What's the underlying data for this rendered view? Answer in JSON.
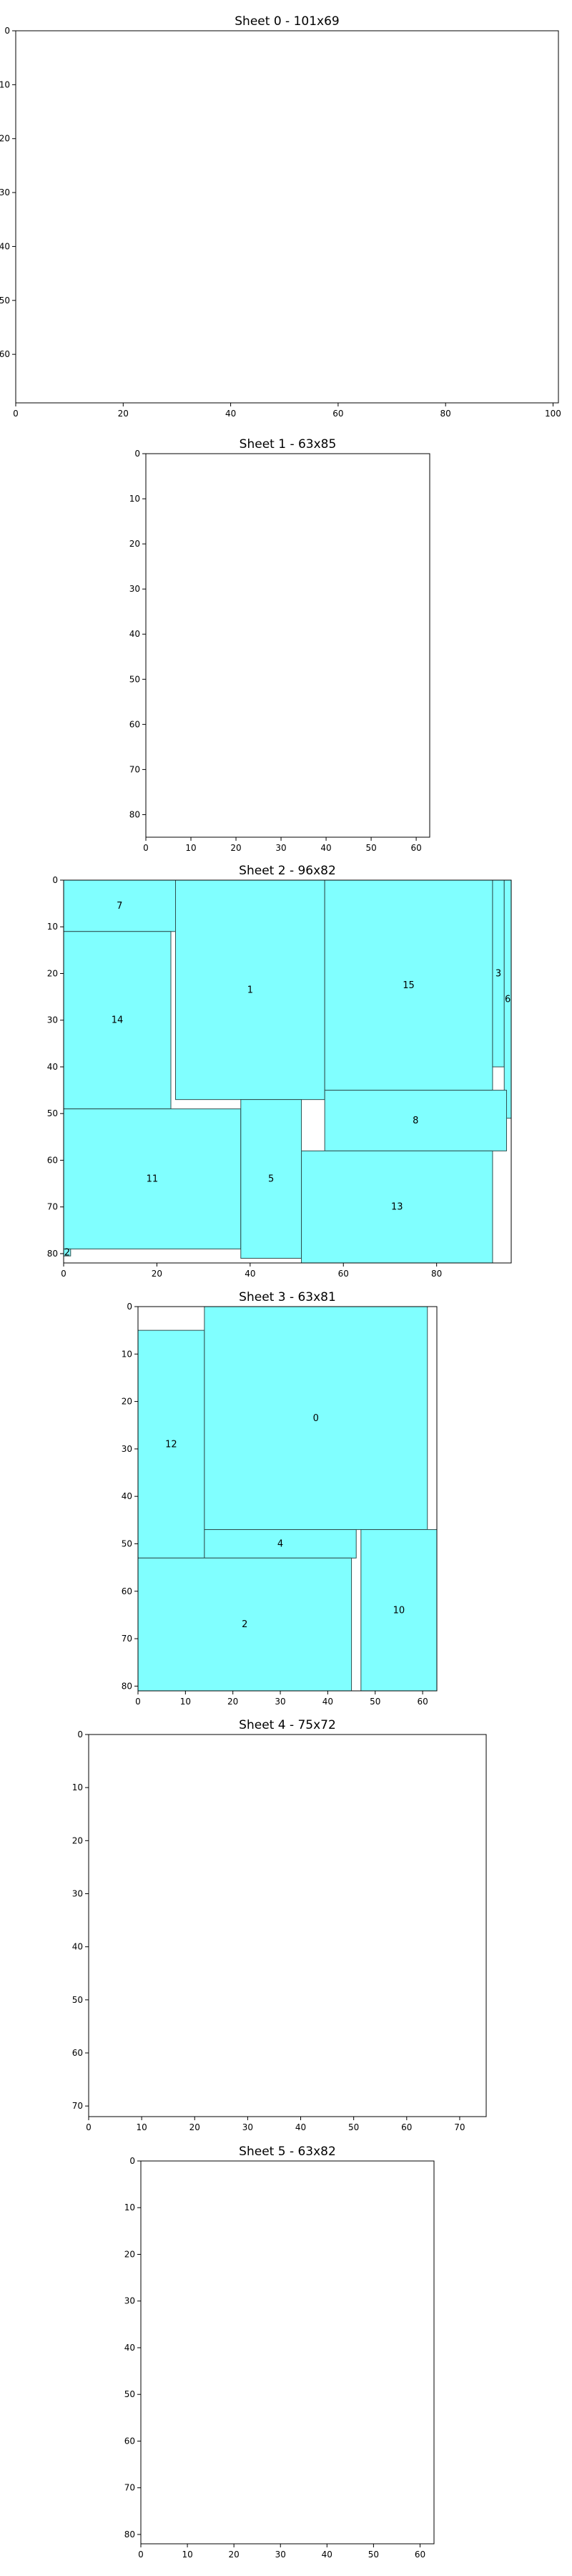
{
  "chart_data": [
    {
      "type": "rectangles",
      "title": "Sheet 0 - 101x69",
      "width": 101,
      "height": 69,
      "xticks": [
        0,
        20,
        40,
        60,
        80,
        100
      ],
      "yticks": [
        0,
        10,
        20,
        30,
        40,
        50,
        60
      ],
      "pieces": []
    },
    {
      "type": "rectangles",
      "title": "Sheet 1 - 63x85",
      "width": 63,
      "height": 85,
      "xticks": [
        0,
        10,
        20,
        30,
        40,
        50,
        60
      ],
      "yticks": [
        0,
        10,
        20,
        30,
        40,
        50,
        60,
        70,
        80
      ],
      "pieces": []
    },
    {
      "type": "rectangles",
      "title": "Sheet 2 - 96x82",
      "width": 96,
      "height": 82,
      "xticks": [
        0,
        20,
        40,
        60,
        80
      ],
      "yticks": [
        0,
        10,
        20,
        30,
        40,
        50,
        60,
        70,
        80
      ],
      "pieces": [
        {
          "label": "7",
          "x": 0,
          "y": 0,
          "w": 24,
          "h": 11
        },
        {
          "label": "1",
          "x": 24,
          "y": 0,
          "w": 32,
          "h": 47
        },
        {
          "label": "15",
          "x": 56,
          "y": 0,
          "w": 36,
          "h": 45
        },
        {
          "label": "3",
          "x": 92,
          "y": 0,
          "w": 2.5,
          "h": 40
        },
        {
          "label": "6",
          "x": 94.5,
          "y": 0,
          "w": 1.5,
          "h": 51
        },
        {
          "label": "14",
          "x": 0,
          "y": 11,
          "w": 23,
          "h": 38
        },
        {
          "label": "8",
          "x": 56,
          "y": 45,
          "w": 39,
          "h": 13
        },
        {
          "label": "11",
          "x": 0,
          "y": 49,
          "w": 38,
          "h": 30
        },
        {
          "label": "5",
          "x": 38,
          "y": 47,
          "w": 13,
          "h": 34
        },
        {
          "label": "13",
          "x": 51,
          "y": 58,
          "w": 41,
          "h": 24
        },
        {
          "label": "2",
          "x": 0,
          "y": 79,
          "w": 1.5,
          "h": 1.5
        }
      ]
    },
    {
      "type": "rectangles",
      "title": "Sheet 3 - 63x81",
      "width": 63,
      "height": 81,
      "xticks": [
        0,
        10,
        20,
        30,
        40,
        50,
        60
      ],
      "yticks": [
        0,
        10,
        20,
        30,
        40,
        50,
        60,
        70,
        80
      ],
      "pieces": [
        {
          "label": "12",
          "x": 0,
          "y": 5,
          "w": 14,
          "h": 48
        },
        {
          "label": "0",
          "x": 14,
          "y": 0,
          "w": 47,
          "h": 47
        },
        {
          "label": "4",
          "x": 14,
          "y": 47,
          "w": 32,
          "h": 6
        },
        {
          "label": "10",
          "x": 47,
          "y": 47,
          "w": 16,
          "h": 34
        },
        {
          "label": "2",
          "x": 0,
          "y": 53,
          "w": 45,
          "h": 28
        }
      ]
    },
    {
      "type": "rectangles",
      "title": "Sheet 4 - 75x72",
      "width": 75,
      "height": 72,
      "xticks": [
        0,
        10,
        20,
        30,
        40,
        50,
        60,
        70
      ],
      "yticks": [
        0,
        10,
        20,
        30,
        40,
        50,
        60,
        70
      ],
      "pieces": []
    },
    {
      "type": "rectangles",
      "title": "Sheet 5 - 63x82",
      "width": 63,
      "height": 82,
      "xticks": [
        0,
        10,
        20,
        30,
        40,
        50,
        60
      ],
      "yticks": [
        0,
        10,
        20,
        30,
        40,
        50,
        60,
        70,
        80
      ],
      "pieces": []
    }
  ]
}
